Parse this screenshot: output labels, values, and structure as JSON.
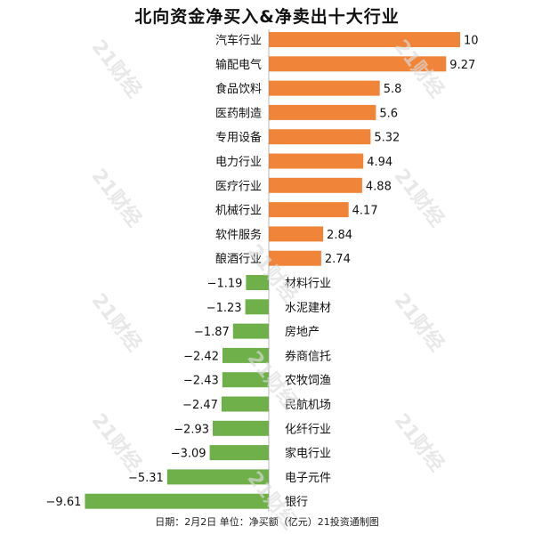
{
  "page": {
    "title": "北向资金净买入&净卖出十大行业",
    "footer": "日期：2月2日 单位：净买额（亿元）21投资通制图",
    "watermark": "21财经"
  },
  "colors": {
    "positive": "#f0853a",
    "negative": "#6fb04a",
    "axis": "#888888",
    "text": "#111111"
  },
  "chart_data": {
    "type": "bar",
    "orientation": "horizontal",
    "title": "北向资金净买入&净卖出十大行业",
    "xlabel": "",
    "ylabel": "",
    "grid": false,
    "legend": "none",
    "xlim": [
      -9.61,
      10
    ],
    "categories": [
      "汽车行业",
      "输配电气",
      "食品饮料",
      "医药制造",
      "专用设备",
      "电力行业",
      "医疗行业",
      "机械行业",
      "软件服务",
      "酿酒行业",
      "材料行业",
      "水泥建材",
      "房地产",
      "券商信托",
      "农牧饲渔",
      "民航机场",
      "化纤行业",
      "家电行业",
      "电子元件",
      "银行"
    ],
    "value_labels": [
      "10",
      "9.27",
      "5.8",
      "5.6",
      "5.32",
      "4.94",
      "4.88",
      "4.17",
      "2.84",
      "2.74",
      "−1.19",
      "−1.23",
      "−1.87",
      "−2.42",
      "−2.43",
      "−2.47",
      "−2.93",
      "−3.09",
      "−5.31",
      "−9.61"
    ],
    "values": [
      10,
      9.27,
      5.8,
      5.6,
      5.32,
      4.94,
      4.88,
      4.17,
      2.84,
      2.74,
      -1.19,
      -1.23,
      -1.87,
      -2.42,
      -2.43,
      -2.47,
      -2.93,
      -3.09,
      -5.31,
      -9.61
    ]
  }
}
